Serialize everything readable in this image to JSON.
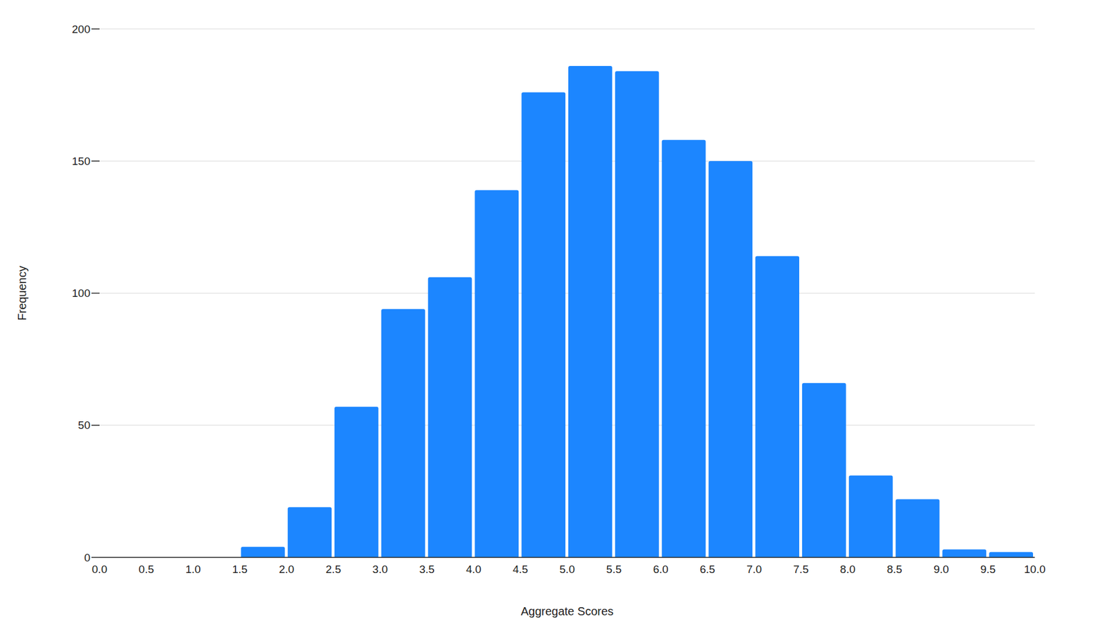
{
  "chart_data": {
    "type": "histogram",
    "x_label": "Aggregate Scores",
    "y_label": "Frequency",
    "bins": [
      0,
      0.5,
      1,
      1.5,
      2,
      2.5,
      3,
      3.5,
      4,
      4.5,
      5,
      5.5,
      6,
      6.5,
      7,
      7.5,
      8,
      8.5,
      9,
      9.5,
      10
    ],
    "values": [
      0,
      0,
      0,
      4,
      19,
      57,
      94,
      106,
      139,
      176,
      186,
      184,
      158,
      150,
      114,
      66,
      31,
      22,
      3,
      2
    ],
    "color": "#1c86ff",
    "xlim": [
      0,
      10
    ],
    "xticks": [
      {
        "value": 0,
        "label": "0.0"
      },
      0.5,
      {
        "value": 1,
        "label": "1.0"
      },
      1.5,
      {
        "value": 2,
        "label": "2.0"
      },
      2.5,
      {
        "value": 3,
        "label": "3.0"
      },
      3.5,
      {
        "value": 4,
        "label": "4.0"
      },
      4.5,
      {
        "value": 5,
        "label": "5.0"
      },
      5.5,
      {
        "value": 6,
        "label": "6.0"
      },
      6.5,
      {
        "value": 7,
        "label": "7.0"
      },
      7.5,
      {
        "value": 8,
        "label": "8.0"
      },
      8.5,
      {
        "value": 9,
        "label": "9.0"
      },
      9.5,
      {
        "value": 10,
        "label": "10.0"
      }
    ],
    "ylim": [
      0,
      200
    ],
    "yticks": [
      0,
      50,
      100,
      150,
      200
    ],
    "grid": true
  }
}
